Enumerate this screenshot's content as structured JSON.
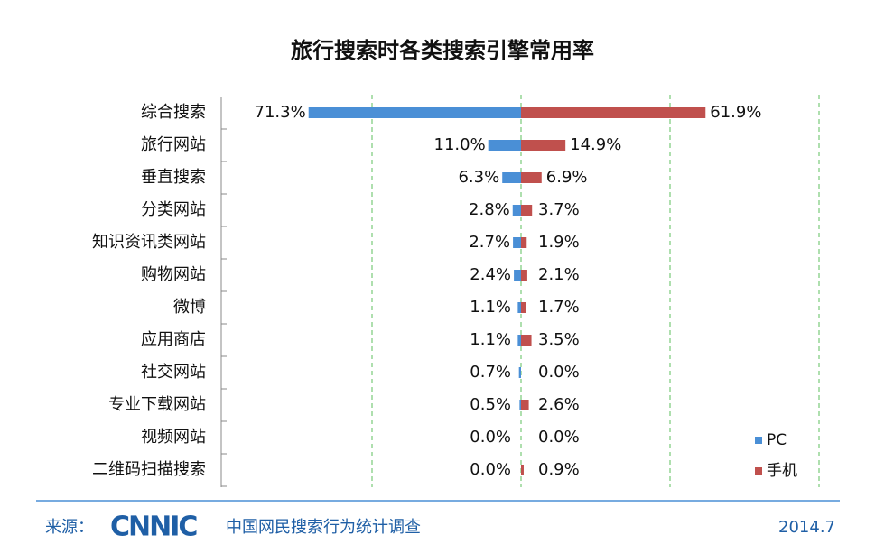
{
  "chart_data": {
    "type": "diverging_bar",
    "title": "旅行搜索时各类搜索引擎常用率",
    "categories": [
      "综合搜索",
      "旅行网站",
      "垂直搜索",
      "分类网站",
      "知识资讯类网站",
      "购物网站",
      "微博",
      "应用商店",
      "社交网站",
      "专业下载网站",
      "视频网站",
      "二维码扫描搜索"
    ],
    "series": [
      {
        "name": "PC",
        "color": "#4a8fd6",
        "side": "left",
        "values": [
          71.3,
          11.0,
          6.3,
          2.8,
          2.7,
          2.4,
          1.1,
          1.1,
          0.7,
          0.5,
          0.0,
          0.0
        ],
        "value_labels": [
          "71.3%",
          "11.0%",
          "6.3%",
          "2.8%",
          "2.7%",
          "2.4%",
          "1.1%",
          "1.1%",
          "0.7%",
          "0.5%",
          "0.0%",
          "0.0%"
        ]
      },
      {
        "name": "手机",
        "color": "#c0504d",
        "side": "right",
        "values": [
          61.9,
          14.9,
          6.9,
          3.7,
          1.9,
          2.1,
          1.7,
          3.5,
          0.0,
          2.6,
          0.0,
          0.9
        ],
        "value_labels": [
          "61.9%",
          "14.9%",
          "6.9%",
          "3.7%",
          "1.9%",
          "2.1%",
          "1.7%",
          "3.5%",
          "0.0%",
          "2.6%",
          "0.0%",
          "0.9%"
        ]
      }
    ],
    "xlim": [
      -100,
      100
    ],
    "xticks": [
      -50,
      0,
      50,
      100
    ],
    "grid": true,
    "legend": "lower right"
  },
  "footer": {
    "source_label": "来源：",
    "logo": "CNNIC",
    "source": "中国网民搜索行为统计调查",
    "date": "2014.7"
  }
}
